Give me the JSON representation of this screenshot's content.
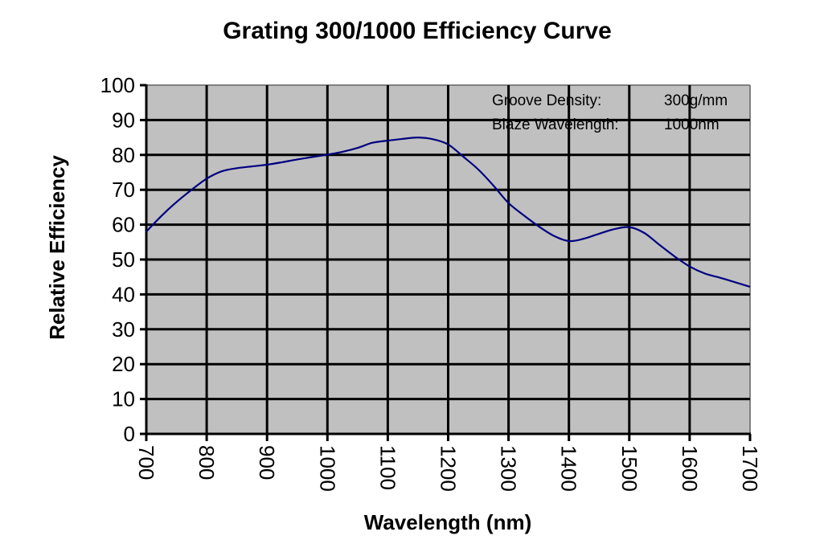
{
  "chart_data": {
    "type": "line",
    "title": "Grating 300/1000 Efficiency Curve",
    "xlabel": "Wavelength (nm)",
    "ylabel": "Relative Efficiency",
    "xlim": [
      700,
      1700
    ],
    "ylim": [
      0,
      100
    ],
    "x_ticks": [
      700,
      800,
      900,
      1000,
      1100,
      1200,
      1300,
      1400,
      1500,
      1600,
      1700
    ],
    "y_ticks": [
      0,
      10,
      20,
      30,
      40,
      50,
      60,
      70,
      80,
      90,
      100
    ],
    "x_tick_labels": [
      "700",
      "800",
      "900",
      "1000",
      "1100",
      "1200",
      "1300",
      "1400",
      "1500",
      "1600",
      "1700"
    ],
    "y_tick_labels": [
      "0",
      "10",
      "20",
      "30",
      "40",
      "50",
      "60",
      "70",
      "80",
      "90",
      "100"
    ],
    "x_tick_label_rotation": "vertical",
    "grid": true,
    "plot_background": "#c0c0c0",
    "annotations": [
      {
        "label": "Groove Density:",
        "value": "300g/mm"
      },
      {
        "label": "Blaze Wavelength:",
        "value": "1000nm"
      }
    ],
    "annotation_position": "top-right",
    "series": [
      {
        "name": "Efficiency",
        "color": "#000080",
        "x": [
          700,
          725,
          750,
          775,
          800,
          825,
          850,
          875,
          900,
          925,
          950,
          975,
          1000,
          1025,
          1050,
          1075,
          1100,
          1125,
          1150,
          1175,
          1200,
          1225,
          1250,
          1275,
          1300,
          1325,
          1350,
          1375,
          1400,
          1425,
          1450,
          1475,
          1500,
          1525,
          1550,
          1575,
          1600,
          1625,
          1650,
          1675,
          1700
        ],
        "y": [
          58,
          62.5,
          66.5,
          70,
          73.2,
          75.3,
          76.2,
          76.7,
          77.2,
          77.9,
          78.7,
          79.4,
          80.1,
          80.9,
          82.0,
          83.5,
          84.1,
          84.6,
          85.0,
          84.5,
          83.0,
          79.5,
          75.8,
          71.2,
          66.2,
          62.7,
          59.5,
          56.8,
          55.3,
          56.0,
          57.4,
          58.7,
          59.3,
          57.6,
          54.2,
          50.9,
          48.0,
          46.0,
          44.8,
          43.5,
          42.2
        ]
      }
    ]
  }
}
